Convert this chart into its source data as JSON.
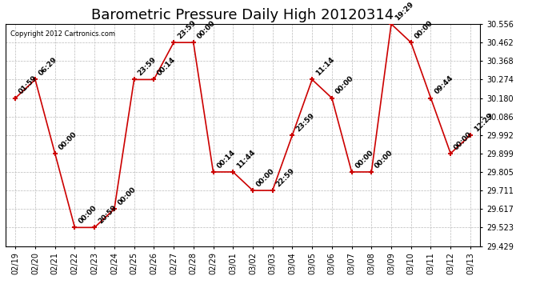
{
  "title": "Barometric Pressure Daily High 20120314",
  "copyright": "Copyright 2012 Cartronics.com",
  "xlabels": [
    "02/19",
    "02/20",
    "02/21",
    "02/22",
    "02/23",
    "02/24",
    "02/25",
    "02/26",
    "02/27",
    "02/28",
    "02/29",
    "03/01",
    "03/02",
    "03/03",
    "03/04",
    "03/05",
    "03/06",
    "03/07",
    "03/08",
    "03/09",
    "03/10",
    "03/11",
    "03/12",
    "03/13"
  ],
  "yvalues": [
    30.18,
    30.274,
    29.899,
    29.523,
    29.523,
    29.617,
    30.274,
    30.274,
    30.462,
    30.462,
    29.805,
    29.805,
    29.711,
    29.711,
    29.992,
    30.274,
    30.18,
    29.805,
    29.805,
    30.556,
    30.462,
    30.18,
    29.899,
    29.992
  ],
  "time_labels": [
    "01:59",
    "06:29",
    "00:00",
    "00:00",
    "20:59",
    "00:00",
    "23:59",
    "00:14",
    "23:59",
    "00:00",
    "00:14",
    "11:44",
    "00:00",
    "22:59",
    "23:59",
    "11:14",
    "00:00",
    "00:00",
    "00:00",
    "19:29",
    "00:00",
    "09:44",
    "00:00",
    "12:29"
  ],
  "ylim_min": 29.429,
  "ylim_max": 30.556,
  "yticks": [
    29.429,
    29.523,
    29.617,
    29.711,
    29.805,
    29.899,
    29.992,
    30.086,
    30.18,
    30.274,
    30.368,
    30.462,
    30.556
  ],
  "line_color": "#cc0000",
  "marker_color": "#cc0000",
  "bg_color": "#ffffff",
  "grid_color": "#bbbbbb",
  "title_fontsize": 13,
  "label_fontsize": 7,
  "annotation_fontsize": 6.5,
  "figsize": [
    6.9,
    3.75
  ],
  "dpi": 100
}
